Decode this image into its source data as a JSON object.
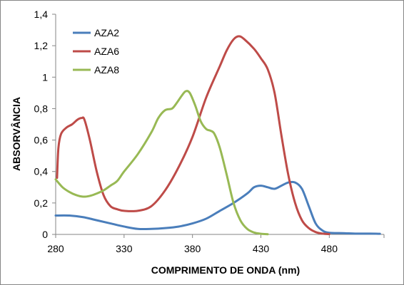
{
  "chart_data": {
    "type": "line",
    "xlabel": "COMPRIMENTO DE ONDA (nm)",
    "ylabel": "ABSORVÂNCIA",
    "xlim": [
      280,
      520
    ],
    "ylim": [
      0,
      1.4
    ],
    "x_ticks": [
      280,
      330,
      380,
      430,
      480
    ],
    "x_tick_labels": [
      "280",
      "330",
      "380",
      "430",
      "480"
    ],
    "y_ticks": [
      0,
      0.2,
      0.4,
      0.6,
      0.8,
      1.0,
      1.2,
      1.4
    ],
    "y_tick_labels": [
      "0",
      "0,2",
      "0,4",
      "0,6",
      "0,8",
      "1",
      "1,2",
      "1,4"
    ],
    "legend_position": "top-left",
    "grid": false,
    "series": [
      {
        "name": "AZA2",
        "color": "#4A7EBB",
        "points": [
          [
            280,
            0.12
          ],
          [
            290,
            0.12
          ],
          [
            300,
            0.11
          ],
          [
            310,
            0.09
          ],
          [
            320,
            0.07
          ],
          [
            330,
            0.05
          ],
          [
            340,
            0.035
          ],
          [
            350,
            0.035
          ],
          [
            360,
            0.04
          ],
          [
            370,
            0.05
          ],
          [
            380,
            0.07
          ],
          [
            390,
            0.1
          ],
          [
            400,
            0.15
          ],
          [
            410,
            0.2
          ],
          [
            420,
            0.26
          ],
          [
            425,
            0.3
          ],
          [
            430,
            0.31
          ],
          [
            435,
            0.3
          ],
          [
            440,
            0.29
          ],
          [
            445,
            0.31
          ],
          [
            450,
            0.33
          ],
          [
            455,
            0.33
          ],
          [
            460,
            0.29
          ],
          [
            465,
            0.18
          ],
          [
            470,
            0.07
          ],
          [
            475,
            0.025
          ],
          [
            480,
            0.01
          ],
          [
            490,
            0.008
          ],
          [
            500,
            0.005
          ],
          [
            510,
            0.005
          ],
          [
            517,
            0.004
          ]
        ]
      },
      {
        "name": "AZA6",
        "color": "#BE4B48",
        "points": [
          [
            281,
            0.36
          ],
          [
            282,
            0.55
          ],
          [
            284,
            0.64
          ],
          [
            288,
            0.68
          ],
          [
            292,
            0.7
          ],
          [
            296,
            0.73
          ],
          [
            299,
            0.74
          ],
          [
            301,
            0.73
          ],
          [
            305,
            0.6
          ],
          [
            310,
            0.4
          ],
          [
            315,
            0.25
          ],
          [
            320,
            0.18
          ],
          [
            325,
            0.16
          ],
          [
            330,
            0.15
          ],
          [
            340,
            0.15
          ],
          [
            350,
            0.18
          ],
          [
            360,
            0.28
          ],
          [
            370,
            0.43
          ],
          [
            380,
            0.62
          ],
          [
            390,
            0.87
          ],
          [
            400,
            1.07
          ],
          [
            405,
            1.17
          ],
          [
            410,
            1.24
          ],
          [
            414,
            1.26
          ],
          [
            418,
            1.24
          ],
          [
            425,
            1.18
          ],
          [
            430,
            1.12
          ],
          [
            435,
            1.05
          ],
          [
            440,
            0.9
          ],
          [
            445,
            0.63
          ],
          [
            450,
            0.38
          ],
          [
            455,
            0.2
          ],
          [
            460,
            0.09
          ],
          [
            465,
            0.04
          ],
          [
            470,
            0.015
          ],
          [
            475,
            0.005
          ],
          [
            480,
            0.002
          ]
        ]
      },
      {
        "name": "AZA8",
        "color": "#98B954",
        "points": [
          [
            280,
            0.35
          ],
          [
            285,
            0.3
          ],
          [
            290,
            0.27
          ],
          [
            295,
            0.25
          ],
          [
            300,
            0.24
          ],
          [
            305,
            0.245
          ],
          [
            310,
            0.26
          ],
          [
            315,
            0.28
          ],
          [
            320,
            0.31
          ],
          [
            325,
            0.34
          ],
          [
            330,
            0.4
          ],
          [
            340,
            0.51
          ],
          [
            350,
            0.65
          ],
          [
            355,
            0.74
          ],
          [
            360,
            0.79
          ],
          [
            365,
            0.8
          ],
          [
            368,
            0.83
          ],
          [
            372,
            0.88
          ],
          [
            375,
            0.91
          ],
          [
            378,
            0.9
          ],
          [
            382,
            0.82
          ],
          [
            386,
            0.72
          ],
          [
            390,
            0.67
          ],
          [
            393,
            0.66
          ],
          [
            396,
            0.64
          ],
          [
            400,
            0.55
          ],
          [
            405,
            0.38
          ],
          [
            410,
            0.2
          ],
          [
            415,
            0.09
          ],
          [
            420,
            0.035
          ],
          [
            425,
            0.012
          ],
          [
            430,
            0.004
          ],
          [
            435,
            0.001
          ]
        ]
      }
    ]
  }
}
